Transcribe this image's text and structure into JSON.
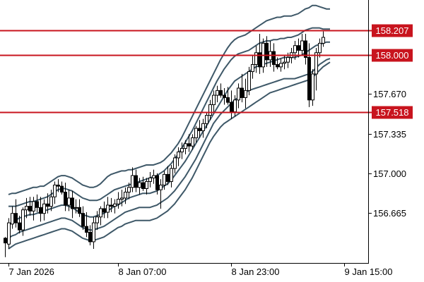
{
  "chart_data": {
    "type": "candlestick",
    "grid": false,
    "ylim": [
      156.33,
      158.33
    ],
    "y_ticks": [
      "157.670",
      "157.335",
      "157.000",
      "156.665"
    ],
    "x_ticks": [
      {
        "label": "7 Jan 2026",
        "bar": 1
      },
      {
        "label": "8 Jan 07:00",
        "bar": 32
      },
      {
        "label": "8 Jan 23:00",
        "bar": 64
      },
      {
        "label": "9 Jan 15:00",
        "bar": 96
      }
    ],
    "colors": {
      "axis": "#000000",
      "level_line": "#c8141e",
      "level_label_bg": "#c8141e",
      "bands": "#3e5868",
      "bull_body": "#ffffff",
      "bear_body": "#000000",
      "wick": "#000000"
    },
    "levels": [
      {
        "value": 158.207,
        "label": "158.207"
      },
      {
        "value": 158.0,
        "label": "158.000"
      },
      {
        "value": 157.518,
        "label": "157.518"
      }
    ],
    "candles": [
      [
        156.45,
        156.46,
        156.29,
        156.41
      ],
      [
        156.4,
        156.62,
        156.36,
        156.58
      ],
      [
        156.57,
        156.72,
        156.53,
        156.66
      ],
      [
        156.66,
        156.78,
        156.54,
        156.58
      ],
      [
        156.58,
        156.64,
        156.49,
        156.52
      ],
      [
        156.52,
        156.71,
        156.47,
        156.69
      ],
      [
        156.69,
        156.79,
        156.62,
        156.72
      ],
      [
        156.72,
        156.8,
        156.64,
        156.68
      ],
      [
        156.68,
        156.8,
        156.6,
        156.76
      ],
      [
        156.76,
        156.82,
        156.67,
        156.71
      ],
      [
        156.71,
        156.8,
        156.59,
        156.66
      ],
      [
        156.66,
        156.78,
        156.6,
        156.74
      ],
      [
        156.74,
        156.83,
        156.66,
        156.72
      ],
      [
        156.72,
        156.86,
        156.68,
        156.8
      ],
      [
        156.8,
        156.93,
        156.74,
        156.9
      ],
      [
        156.9,
        156.95,
        156.84,
        156.89
      ],
      [
        156.89,
        156.93,
        156.82,
        156.84
      ],
      [
        156.84,
        156.92,
        156.68,
        156.73
      ],
      [
        156.73,
        156.86,
        156.68,
        156.79
      ],
      [
        156.79,
        156.85,
        156.62,
        156.7
      ],
      [
        156.71,
        156.78,
        156.66,
        156.71
      ],
      [
        156.71,
        156.78,
        156.63,
        156.66
      ],
      [
        156.66,
        156.72,
        156.52,
        156.55
      ],
      [
        156.55,
        156.67,
        156.46,
        156.5
      ],
      [
        156.5,
        156.56,
        156.39,
        156.42
      ],
      [
        156.42,
        156.63,
        156.36,
        156.58
      ],
      [
        156.58,
        156.68,
        156.52,
        156.63
      ],
      [
        156.63,
        156.72,
        156.56,
        156.7
      ],
      [
        156.7,
        156.76,
        156.62,
        156.67
      ],
      [
        156.67,
        156.8,
        156.62,
        156.73
      ],
      [
        156.73,
        156.79,
        156.67,
        156.72
      ],
      [
        156.72,
        156.78,
        156.66,
        156.74
      ],
      [
        156.74,
        156.84,
        156.7,
        156.78
      ],
      [
        156.78,
        156.86,
        156.72,
        156.79
      ],
      [
        156.79,
        156.88,
        156.74,
        156.84
      ],
      [
        156.84,
        156.92,
        156.78,
        156.88
      ],
      [
        156.88,
        157.05,
        156.84,
        156.98
      ],
      [
        156.98,
        157.03,
        156.84,
        156.88
      ],
      [
        156.88,
        156.96,
        156.82,
        156.92
      ],
      [
        156.92,
        156.97,
        156.85,
        156.87
      ],
      [
        156.87,
        156.96,
        156.82,
        156.93
      ],
      [
        156.93,
        157.01,
        156.88,
        156.96
      ],
      [
        156.96,
        157.03,
        156.91,
        156.98
      ],
      [
        156.98,
        157.0,
        156.82,
        156.86
      ],
      [
        156.86,
        156.95,
        156.7,
        156.9
      ],
      [
        156.9,
        157.02,
        156.86,
        156.99
      ],
      [
        156.99,
        157.06,
        156.9,
        156.93
      ],
      [
        156.93,
        157.07,
        156.88,
        157.04
      ],
      [
        157.04,
        157.16,
        157.0,
        157.13
      ],
      [
        157.13,
        157.22,
        157.06,
        157.18
      ],
      [
        157.18,
        157.26,
        157.12,
        157.21
      ],
      [
        157.21,
        157.28,
        157.16,
        157.25
      ],
      [
        157.25,
        157.33,
        157.18,
        157.23
      ],
      [
        157.23,
        157.33,
        157.2,
        157.3
      ],
      [
        157.3,
        157.4,
        157.26,
        157.38
      ],
      [
        157.38,
        157.45,
        157.3,
        157.36
      ],
      [
        157.36,
        157.46,
        157.3,
        157.42
      ],
      [
        157.42,
        157.52,
        157.38,
        157.49
      ],
      [
        157.49,
        157.62,
        157.45,
        157.58
      ],
      [
        157.58,
        157.7,
        157.52,
        157.66
      ],
      [
        157.66,
        157.74,
        157.6,
        157.7
      ],
      [
        157.7,
        157.76,
        157.64,
        157.66
      ],
      [
        157.66,
        157.72,
        157.58,
        157.64
      ],
      [
        157.64,
        157.73,
        157.58,
        157.6
      ],
      [
        157.6,
        157.7,
        157.46,
        157.52
      ],
      [
        157.52,
        157.66,
        157.48,
        157.62
      ],
      [
        157.62,
        157.76,
        157.55,
        157.72
      ],
      [
        157.72,
        157.84,
        157.6,
        157.64
      ],
      [
        157.64,
        157.8,
        157.55,
        157.7
      ],
      [
        157.7,
        157.9,
        157.66,
        157.86
      ],
      [
        157.86,
        158.0,
        157.8,
        157.92
      ],
      [
        157.92,
        158.08,
        157.85,
        158.02
      ],
      [
        158.02,
        158.18,
        157.84,
        157.9
      ],
      [
        157.9,
        158.14,
        157.85,
        158.1
      ],
      [
        158.1,
        158.16,
        157.9,
        157.96
      ],
      [
        157.96,
        158.12,
        157.9,
        158.03
      ],
      [
        158.03,
        158.1,
        157.86,
        157.92
      ],
      [
        157.92,
        157.98,
        157.88,
        157.9
      ],
      [
        157.9,
        157.97,
        157.86,
        157.93
      ],
      [
        157.93,
        158.0,
        157.88,
        157.94
      ],
      [
        157.94,
        158.02,
        157.89,
        157.98
      ],
      [
        157.98,
        158.06,
        157.93,
        158.02
      ],
      [
        158.02,
        158.12,
        157.96,
        158.08
      ],
      [
        158.08,
        158.14,
        157.98,
        158.04
      ],
      [
        158.04,
        158.18,
        158.0,
        158.12
      ],
      [
        158.12,
        158.18,
        157.92,
        157.98
      ],
      [
        157.98,
        158.1,
        157.56,
        157.62
      ],
      [
        157.62,
        157.88,
        157.57,
        157.84
      ],
      [
        157.84,
        158.06,
        157.7,
        158.02
      ],
      [
        158.02,
        158.14,
        157.98,
        158.1
      ],
      [
        158.1,
        158.2,
        158.07,
        158.15
      ]
    ],
    "bands": [
      {
        "name": "",
        "values": [
          156.82,
          156.83,
          156.83,
          156.84,
          156.85,
          156.86,
          156.87,
          156.88,
          156.88,
          156.89,
          156.89,
          156.91,
          156.93,
          156.95,
          156.97,
          156.98,
          156.98,
          156.97,
          156.96,
          156.94,
          156.92,
          156.9,
          156.89,
          156.88,
          156.88,
          156.89,
          156.91,
          156.94,
          156.97,
          156.99,
          157.0,
          157.01,
          157.02,
          157.02,
          157.03,
          157.03,
          157.04,
          157.05,
          157.06,
          157.07,
          157.07,
          157.07,
          157.08,
          157.09,
          157.11,
          157.14,
          157.17,
          157.21,
          157.25,
          157.3,
          157.36,
          157.42,
          157.48,
          157.54,
          157.6,
          157.66,
          157.72,
          157.78,
          157.84,
          157.9,
          157.96,
          158.01,
          158.06,
          158.1,
          158.13,
          158.15,
          158.16,
          158.17,
          158.19,
          158.21,
          158.23,
          158.25,
          158.27,
          158.29,
          158.3,
          158.31,
          158.32,
          158.32,
          158.33,
          158.33,
          158.33,
          158.34,
          158.35,
          158.37,
          158.39,
          158.4,
          158.42,
          158.42,
          158.41,
          158.4,
          158.39,
          158.39
        ]
      },
      {
        "name": "",
        "values": [
          156.72,
          156.72,
          156.72,
          156.73,
          156.74,
          156.75,
          156.76,
          156.76,
          156.77,
          156.78,
          156.79,
          156.8,
          156.82,
          156.84,
          156.86,
          156.87,
          156.87,
          156.86,
          156.85,
          156.83,
          156.81,
          156.79,
          156.78,
          156.77,
          156.77,
          156.77,
          156.78,
          156.8,
          156.82,
          156.84,
          156.86,
          156.87,
          156.88,
          156.89,
          156.9,
          156.91,
          156.92,
          156.93,
          156.94,
          156.95,
          156.96,
          156.97,
          156.98,
          157.0,
          157.02,
          157.05,
          157.08,
          157.12,
          157.16,
          157.21,
          157.26,
          157.31,
          157.36,
          157.42,
          157.48,
          157.54,
          157.6,
          157.66,
          157.72,
          157.78,
          157.83,
          157.88,
          157.92,
          157.96,
          157.99,
          158.01,
          158.02,
          158.03,
          158.04,
          158.06,
          158.08,
          158.1,
          158.11,
          158.12,
          158.12,
          158.13,
          158.13,
          158.14,
          158.14,
          158.15,
          158.15,
          158.16,
          158.17,
          158.19,
          158.21,
          158.22,
          158.23,
          158.23,
          158.23,
          158.22,
          158.22,
          158.22
        ]
      },
      {
        "name": "",
        "values": [
          156.56,
          156.58,
          156.6,
          156.62,
          156.63,
          156.64,
          156.65,
          156.65,
          156.66,
          156.67,
          156.68,
          156.69,
          156.7,
          156.71,
          156.72,
          156.73,
          156.73,
          156.72,
          156.71,
          156.69,
          156.67,
          156.65,
          156.64,
          156.63,
          156.63,
          156.64,
          156.65,
          156.66,
          156.68,
          156.7,
          156.72,
          156.73,
          156.75,
          156.77,
          156.79,
          156.8,
          156.81,
          156.82,
          156.83,
          156.83,
          156.83,
          156.84,
          156.85,
          156.87,
          156.89,
          156.91,
          156.94,
          156.98,
          157.02,
          157.06,
          157.1,
          157.15,
          157.2,
          157.25,
          157.3,
          157.35,
          157.4,
          157.45,
          157.5,
          157.55,
          157.6,
          157.65,
          157.7,
          157.74,
          157.78,
          157.8,
          157.82,
          157.84,
          157.86,
          157.88,
          157.9,
          157.91,
          157.92,
          157.93,
          157.94,
          157.95,
          157.96,
          157.97,
          157.98,
          157.98,
          157.98,
          157.98,
          157.99,
          158.0,
          158.02,
          158.04,
          158.06,
          158.08,
          158.09,
          158.1,
          158.11,
          158.11
        ]
      },
      {
        "name": "",
        "values": [
          156.45,
          156.47,
          156.48,
          156.5,
          156.51,
          156.52,
          156.53,
          156.54,
          156.55,
          156.56,
          156.57,
          156.58,
          156.59,
          156.6,
          156.61,
          156.62,
          156.62,
          156.61,
          156.6,
          156.58,
          156.56,
          156.54,
          156.53,
          156.52,
          156.52,
          156.53,
          156.54,
          156.55,
          156.57,
          156.59,
          156.61,
          156.63,
          156.65,
          156.67,
          156.68,
          156.69,
          156.7,
          156.71,
          156.71,
          156.71,
          156.71,
          156.72,
          156.73,
          156.75,
          156.77,
          156.79,
          156.82,
          156.85,
          156.89,
          156.93,
          156.97,
          157.02,
          157.07,
          157.12,
          157.18,
          157.24,
          157.3,
          157.36,
          157.42,
          157.46,
          157.5,
          157.53,
          157.56,
          157.59,
          157.62,
          157.64,
          157.66,
          157.68,
          157.7,
          157.71,
          157.72,
          157.73,
          157.74,
          157.75,
          157.76,
          157.77,
          157.78,
          157.79,
          157.8,
          157.8,
          157.8,
          157.8,
          157.81,
          157.82,
          157.83,
          157.84,
          157.86,
          157.89,
          157.92,
          157.94,
          157.96,
          157.97
        ]
      },
      {
        "name": "",
        "values": [
          156.36,
          156.38,
          156.4,
          156.41,
          156.42,
          156.43,
          156.44,
          156.45,
          156.46,
          156.47,
          156.48,
          156.49,
          156.5,
          156.51,
          156.52,
          156.53,
          156.53,
          156.52,
          156.51,
          156.49,
          156.47,
          156.45,
          156.44,
          156.43,
          156.43,
          156.44,
          156.45,
          156.46,
          156.48,
          156.5,
          156.52,
          156.54,
          156.55,
          156.57,
          156.58,
          156.59,
          156.6,
          156.6,
          156.6,
          156.6,
          156.6,
          156.61,
          156.62,
          156.64,
          156.66,
          156.68,
          156.71,
          156.74,
          156.78,
          156.82,
          156.86,
          156.91,
          156.96,
          157.02,
          157.08,
          157.14,
          157.2,
          157.26,
          157.31,
          157.35,
          157.39,
          157.42,
          157.44,
          157.46,
          157.48,
          157.5,
          157.52,
          157.54,
          157.56,
          157.58,
          157.6,
          157.62,
          157.64,
          157.66,
          157.68,
          157.69,
          157.7,
          157.71,
          157.72,
          157.73,
          157.74,
          157.75,
          157.76,
          157.77,
          157.78,
          157.79,
          157.81,
          157.84,
          157.87,
          157.9,
          157.92,
          157.94
        ]
      }
    ]
  }
}
